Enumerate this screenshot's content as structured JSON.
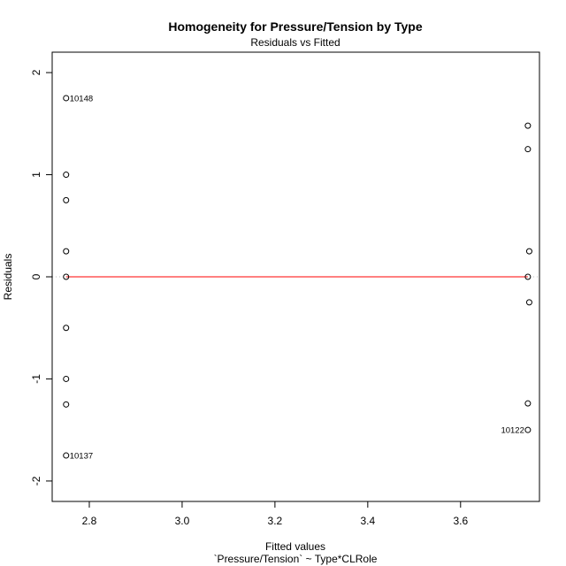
{
  "chart_data": {
    "type": "scatter",
    "title": "Homogeneity for Pressure/Tension by Type",
    "subtitle": "Residuals vs Fitted",
    "xlabel": "Fitted values",
    "xlabel_sub": "`Pressure/Tension` ~ Type*CLRole",
    "ylabel": "Residuals",
    "xlim": [
      2.72,
      3.77
    ],
    "ylim": [
      -2.2,
      2.2
    ],
    "xticks": [
      2.8,
      3.0,
      3.2,
      3.4,
      3.6
    ],
    "xtick_labels": [
      "2.8",
      "3.0",
      "3.2",
      "3.4",
      "3.6"
    ],
    "yticks": [
      -2,
      -1,
      0,
      1,
      2
    ],
    "ytick_labels": [
      "-2",
      "-1",
      "0",
      "1",
      "2"
    ],
    "grid": false,
    "reference_line": {
      "y": 0,
      "color": "#bbbbbb",
      "style": "dotted"
    },
    "smooth_line": {
      "color": "#ff0000",
      "x": [
        2.75,
        3.745
      ],
      "y": [
        0,
        0
      ]
    },
    "points": [
      {
        "x": 2.75,
        "y": 1.75,
        "label": "10148"
      },
      {
        "x": 2.75,
        "y": 1.0
      },
      {
        "x": 2.75,
        "y": 0.75
      },
      {
        "x": 2.75,
        "y": 0.25
      },
      {
        "x": 2.75,
        "y": 0.0
      },
      {
        "x": 2.75,
        "y": -0.5
      },
      {
        "x": 2.75,
        "y": -1.0
      },
      {
        "x": 2.75,
        "y": -1.25
      },
      {
        "x": 2.75,
        "y": -1.75,
        "label": "10137"
      },
      {
        "x": 3.745,
        "y": 1.48
      },
      {
        "x": 3.745,
        "y": 1.25
      },
      {
        "x": 3.748,
        "y": 0.25
      },
      {
        "x": 3.745,
        "y": 0.0
      },
      {
        "x": 3.748,
        "y": -0.25
      },
      {
        "x": 3.745,
        "y": -1.24
      },
      {
        "x": 3.745,
        "y": -1.5,
        "label": "10122",
        "label_side": "left"
      }
    ]
  }
}
